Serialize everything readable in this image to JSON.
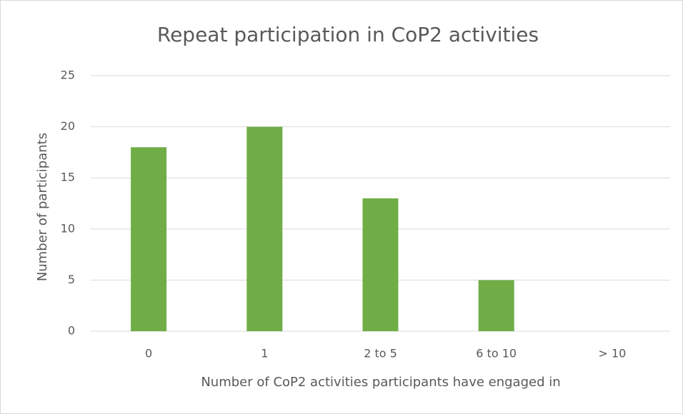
{
  "chart_data": {
    "type": "bar",
    "title": "Repeat participation in CoP2 activities",
    "x_label": "Number  of CoP2 activities participants have engaged in",
    "y_label": "Number  of participants",
    "categories": [
      "0",
      "1",
      "2 to 5",
      "6 to 10",
      "> 10"
    ],
    "values": [
      18,
      20,
      13,
      5,
      0
    ],
    "color": "#70ad47",
    "ylim": [
      0,
      25
    ],
    "yticks": [
      0,
      5,
      10,
      15,
      20,
      25
    ],
    "grid": true
  }
}
